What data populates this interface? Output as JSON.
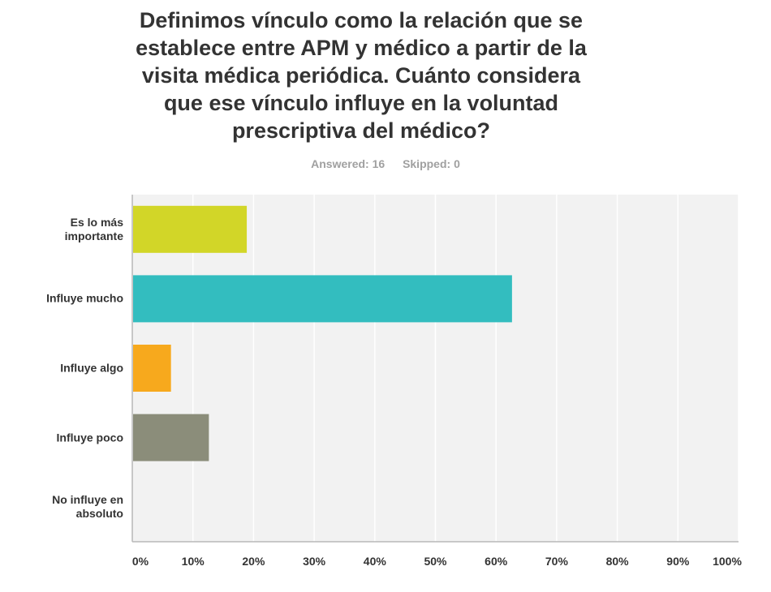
{
  "survey": {
    "answered_label": "Answered: 16",
    "skipped_label": "Skipped: 0"
  },
  "chart_data": {
    "type": "bar",
    "orientation": "horizontal",
    "title_lines": [
      "Definimos vínculo como la relación que se",
      "establece entre APM y médico a partir de la",
      "visita médica periódica. Cuánto considera",
      "que ese vínculo influye en la voluntad",
      "prescriptiva del médico?"
    ],
    "category_lines": [
      [
        "Es lo más",
        "importante"
      ],
      [
        "Influye mucho"
      ],
      [
        "Influye algo"
      ],
      [
        "Influye poco"
      ],
      [
        "No influye en",
        "absoluto"
      ]
    ],
    "values": [
      18.75,
      62.5,
      6.25,
      12.5,
      0
    ],
    "colors": [
      "#d2d628",
      "#33bdbf",
      "#f7a91d",
      "#8b8d7a",
      "#c6c6c6"
    ],
    "xlim": [
      0,
      100
    ],
    "x_tick_labels": [
      "0%",
      "10%",
      "20%",
      "30%",
      "40%",
      "50%",
      "60%",
      "70%",
      "80%",
      "90%",
      "100%"
    ],
    "grid": true,
    "background": "#f2f2f2"
  }
}
